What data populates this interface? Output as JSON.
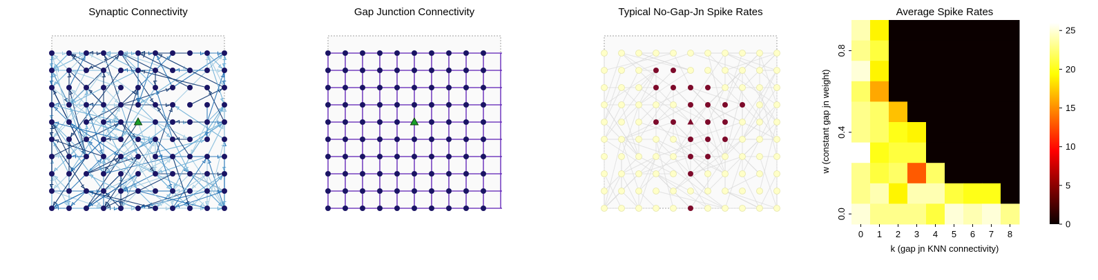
{
  "colors": {
    "node_dark": "#1a1464",
    "edge_palette": [
      "#08306b",
      "#2171b5",
      "#6baed6",
      "#9ecae1"
    ],
    "gap_edge": "#5a1ab5",
    "marker_green": "#1a9e2a",
    "spike_high": "#ffffc8",
    "spike_low": "#7d0a2a",
    "border": "#a0a0a0"
  },
  "chart_data": [
    {
      "type": "network",
      "title": "Synaptic Connectivity",
      "grid_size": [
        11,
        10
      ],
      "marked_node": [
        5,
        4
      ],
      "marker": "triangle"
    },
    {
      "type": "network",
      "title": "Gap Junction Connectivity",
      "grid_size": [
        11,
        10
      ],
      "marked_node": [
        5,
        4
      ],
      "marker": "triangle"
    },
    {
      "type": "network",
      "title": "Typical No-Gap-Jn Spike Rates",
      "grid_size": [
        11,
        10
      ],
      "marked_node": [
        5,
        4
      ],
      "low_rate_nodes": [
        [
          3,
          1
        ],
        [
          4,
          1
        ],
        [
          3,
          2
        ],
        [
          4,
          2
        ],
        [
          5,
          2
        ],
        [
          6,
          2
        ],
        [
          5,
          3
        ],
        [
          6,
          3
        ],
        [
          7,
          3
        ],
        [
          8,
          3
        ],
        [
          3,
          4
        ],
        [
          4,
          4
        ],
        [
          6,
          4
        ],
        [
          7,
          4
        ],
        [
          5,
          5
        ],
        [
          6,
          5
        ],
        [
          7,
          5
        ],
        [
          5,
          6
        ],
        [
          6,
          6
        ],
        [
          5,
          7
        ],
        [
          5,
          9
        ]
      ]
    },
    {
      "type": "heatmap",
      "title": "Average Spike Rates",
      "xlabel": "k (gap jn KNN connectivity)",
      "ylabel": "w (constant gap jn weight)",
      "x": [
        0,
        1,
        2,
        3,
        4,
        5,
        6,
        7,
        8
      ],
      "y_ticklabels": [
        "0.8",
        "0.4",
        "0.0"
      ],
      "colorbar": {
        "min": 0,
        "max": 26,
        "ticks": [
          0,
          5,
          10,
          15,
          20,
          25
        ]
      },
      "values": [
        [
          24,
          19,
          0,
          0,
          0,
          0,
          0,
          0,
          0
        ],
        [
          23,
          21,
          0,
          0,
          0,
          0,
          0,
          0,
          0
        ],
        [
          25,
          19,
          0,
          0,
          0,
          0,
          0,
          0,
          0
        ],
        [
          22,
          16,
          0,
          0,
          0,
          0,
          0,
          0,
          0
        ],
        [
          23,
          22,
          17,
          0,
          0,
          0,
          0,
          0,
          0
        ],
        [
          23,
          22,
          20,
          19,
          0,
          0,
          0,
          0,
          0
        ],
        [
          26,
          20,
          21,
          21,
          0,
          0,
          0,
          0,
          0
        ],
        [
          23,
          21,
          22,
          13,
          22,
          0,
          0,
          0,
          0
        ],
        [
          23,
          24,
          19,
          24,
          24,
          21,
          20,
          20,
          0
        ],
        [
          25,
          23,
          23,
          23,
          21,
          25,
          24,
          25,
          23
        ]
      ]
    }
  ]
}
